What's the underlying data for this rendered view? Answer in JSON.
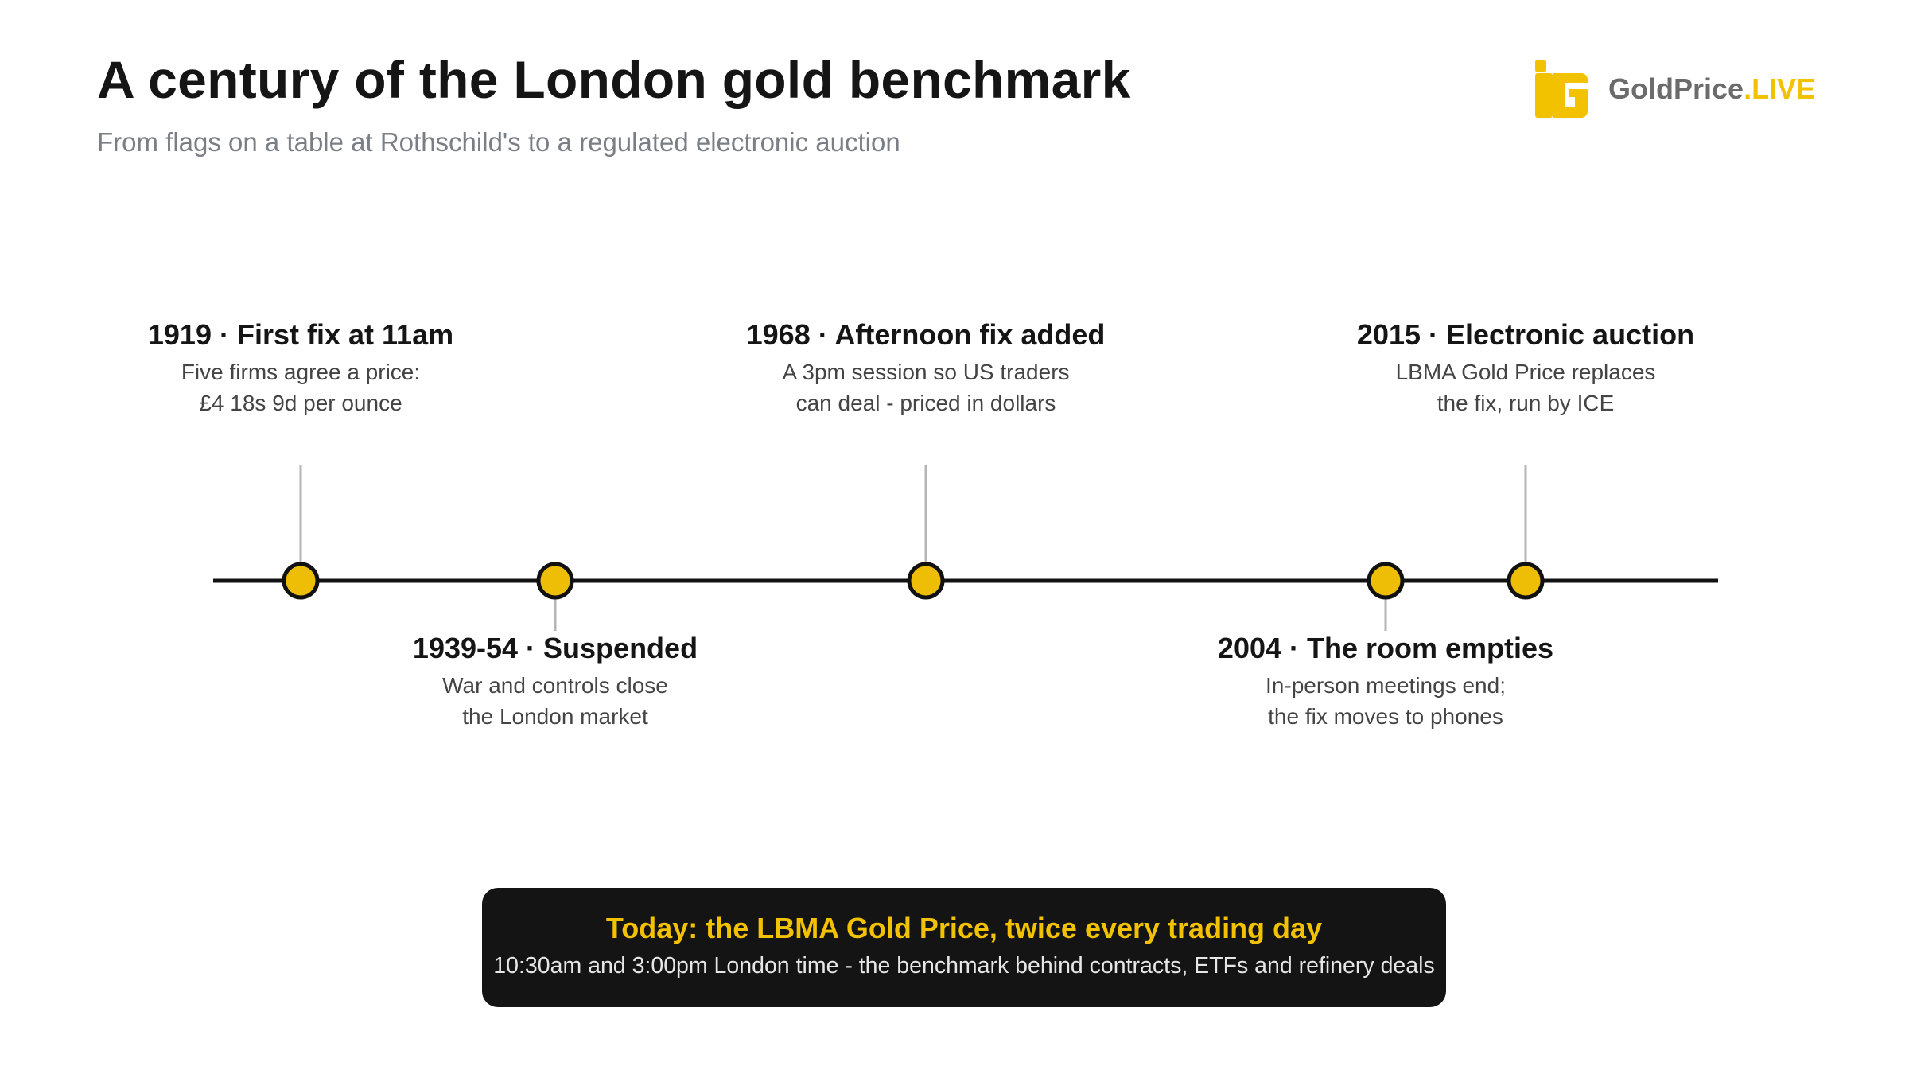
{
  "header": {
    "title": "A century of the London gold benchmark",
    "subtitle": "From flags on a table at Rothschild's to a regulated electronic auction"
  },
  "logo": {
    "icon": "goldprice-g-logo-icon",
    "name": "GoldPrice",
    "accent": ".LIVE"
  },
  "timeline": {
    "events": [
      {
        "year": 1919,
        "title": "1919 · First fix at 11am",
        "description": [
          "Five firms agree a price:",
          "£4 18s 9d per ounce"
        ],
        "position": "above"
      },
      {
        "year": 1939,
        "title": "1939-54 · Suspended",
        "description": [
          "War and controls close",
          "the London market"
        ],
        "position": "below"
      },
      {
        "year": 1968,
        "title": "1968 · Afternoon fix added",
        "description": [
          "A 3pm session so US traders",
          "can deal - priced in dollars"
        ],
        "position": "above"
      },
      {
        "year": 2004,
        "title": "2004 · The room empties",
        "description": [
          "In-person meetings end;",
          "the fix moves to phones"
        ],
        "position": "below"
      },
      {
        "year": 2015,
        "title": "2015 · Electronic auction",
        "description": [
          "LBMA Gold Price replaces",
          "the fix, run by ICE"
        ],
        "position": "above"
      }
    ]
  },
  "banner": {
    "title": "Today: the LBMA Gold Price, twice every trading day",
    "text": "10:30am and 3:00pm London time - the benchmark behind contracts, ETFs and refinery deals"
  },
  "colors": {
    "gold": "#f2c200",
    "marker_fill": "#eebd06",
    "axis": "#111111",
    "connector": "#b5b5b5",
    "banner_bg": "#141414"
  }
}
